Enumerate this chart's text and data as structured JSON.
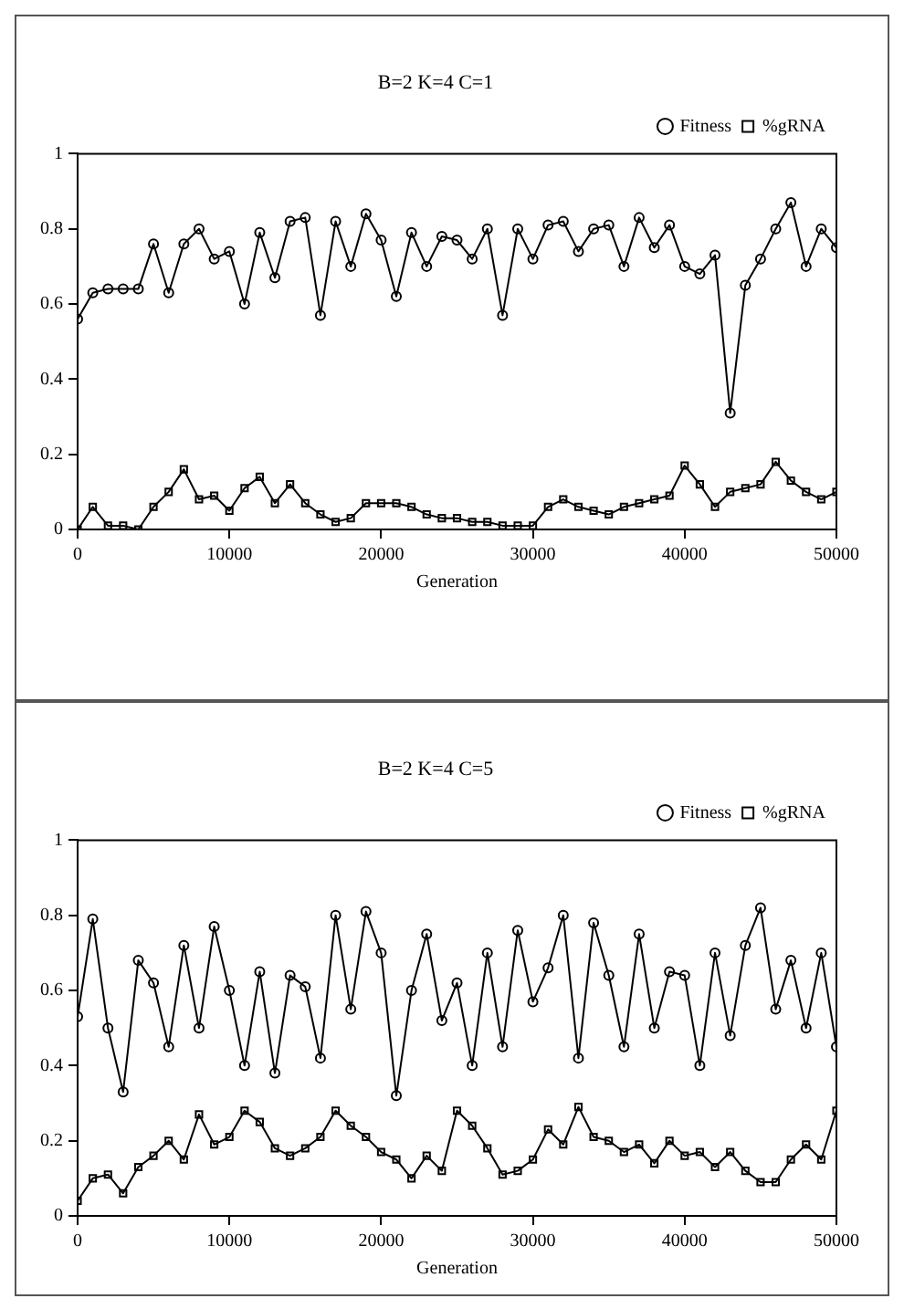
{
  "chart_data": [
    {
      "type": "line",
      "title": "B=2 K=4 C=1",
      "xlabel": "Generation",
      "x": [
        0,
        1000,
        2000,
        3000,
        4000,
        5000,
        6000,
        7000,
        8000,
        9000,
        10000,
        11000,
        12000,
        13000,
        14000,
        15000,
        16000,
        17000,
        18000,
        19000,
        20000,
        21000,
        22000,
        23000,
        24000,
        25000,
        26000,
        27000,
        28000,
        29000,
        30000,
        31000,
        32000,
        33000,
        34000,
        35000,
        36000,
        37000,
        38000,
        39000,
        40000,
        41000,
        42000,
        43000,
        44000,
        45000,
        46000,
        47000,
        48000,
        49000,
        50000
      ],
      "series": [
        {
          "name": "Fitness",
          "color": "#000000",
          "marker": "circle",
          "values": [
            0.56,
            0.63,
            0.64,
            0.64,
            0.64,
            0.76,
            0.63,
            0.76,
            0.8,
            0.72,
            0.74,
            0.6,
            0.79,
            0.67,
            0.82,
            0.83,
            0.57,
            0.82,
            0.7,
            0.84,
            0.77,
            0.62,
            0.79,
            0.7,
            0.78,
            0.77,
            0.72,
            0.8,
            0.57,
            0.8,
            0.72,
            0.81,
            0.82,
            0.74,
            0.8,
            0.81,
            0.7,
            0.83,
            0.75,
            0.81,
            0.7,
            0.68,
            0.73,
            0.31,
            0.65,
            0.72,
            0.8,
            0.87,
            0.7,
            0.8,
            0.75
          ]
        },
        {
          "name": "%gRNA",
          "color": "#000000",
          "marker": "square",
          "values": [
            0,
            0.06,
            0.01,
            0.01,
            0,
            0.06,
            0.1,
            0.16,
            0.08,
            0.09,
            0.05,
            0.11,
            0.14,
            0.07,
            0.12,
            0.07,
            0.04,
            0.02,
            0.03,
            0.07,
            0.07,
            0.07,
            0.06,
            0.04,
            0.03,
            0.03,
            0.02,
            0.02,
            0.01,
            0.01,
            0.01,
            0.06,
            0.08,
            0.06,
            0.05,
            0.04,
            0.06,
            0.07,
            0.08,
            0.09,
            0.17,
            0.12,
            0.06,
            0.1,
            0.11,
            0.12,
            0.18,
            0.13,
            0.1,
            0.08,
            0.1
          ]
        }
      ],
      "xlim": [
        0,
        50000
      ],
      "xticks": [
        0,
        10000,
        20000,
        30000,
        40000,
        50000
      ],
      "ylim": [
        0,
        1
      ],
      "yticks": [
        0,
        0.2,
        0.4,
        0.6,
        0.8,
        1
      ],
      "grid": false,
      "legend": "top right"
    },
    {
      "type": "line",
      "title": "B=2 K=4 C=5",
      "xlabel": "Generation",
      "x": [
        0,
        1000,
        2000,
        3000,
        4000,
        5000,
        6000,
        7000,
        8000,
        9000,
        10000,
        11000,
        12000,
        13000,
        14000,
        15000,
        16000,
        17000,
        18000,
        19000,
        20000,
        21000,
        22000,
        23000,
        24000,
        25000,
        26000,
        27000,
        28000,
        29000,
        30000,
        31000,
        32000,
        33000,
        34000,
        35000,
        36000,
        37000,
        38000,
        39000,
        40000,
        41000,
        42000,
        43000,
        44000,
        45000,
        46000,
        47000,
        48000,
        49000,
        50000
      ],
      "series": [
        {
          "name": "Fitness",
          "color": "#000000",
          "marker": "circle",
          "values": [
            0.53,
            0.79,
            0.5,
            0.33,
            0.68,
            0.62,
            0.45,
            0.72,
            0.5,
            0.77,
            0.6,
            0.4,
            0.65,
            0.38,
            0.64,
            0.61,
            0.42,
            0.8,
            0.55,
            0.81,
            0.7,
            0.32,
            0.6,
            0.75,
            0.52,
            0.62,
            0.4,
            0.7,
            0.45,
            0.76,
            0.57,
            0.66,
            0.8,
            0.42,
            0.78,
            0.64,
            0.45,
            0.75,
            0.5,
            0.65,
            0.64,
            0.4,
            0.7,
            0.48,
            0.72,
            0.82,
            0.55,
            0.68,
            0.5,
            0.7,
            0.45
          ]
        },
        {
          "name": "%gRNA",
          "color": "#000000",
          "marker": "square",
          "values": [
            0.04,
            0.1,
            0.11,
            0.06,
            0.13,
            0.16,
            0.2,
            0.15,
            0.27,
            0.19,
            0.21,
            0.28,
            0.25,
            0.18,
            0.16,
            0.18,
            0.21,
            0.28,
            0.24,
            0.21,
            0.17,
            0.15,
            0.1,
            0.16,
            0.12,
            0.28,
            0.24,
            0.18,
            0.11,
            0.12,
            0.15,
            0.23,
            0.19,
            0.29,
            0.21,
            0.2,
            0.17,
            0.19,
            0.14,
            0.2,
            0.16,
            0.17,
            0.13,
            0.17,
            0.12,
            0.09,
            0.09,
            0.15,
            0.19,
            0.15,
            0.28
          ]
        }
      ],
      "xlim": [
        0,
        50000
      ],
      "xticks": [
        0,
        10000,
        20000,
        30000,
        40000,
        50000
      ],
      "ylim": [
        0,
        1
      ],
      "yticks": [
        0,
        0.2,
        0.4,
        0.6,
        0.8,
        1
      ],
      "grid": false,
      "legend": "top right"
    }
  ]
}
